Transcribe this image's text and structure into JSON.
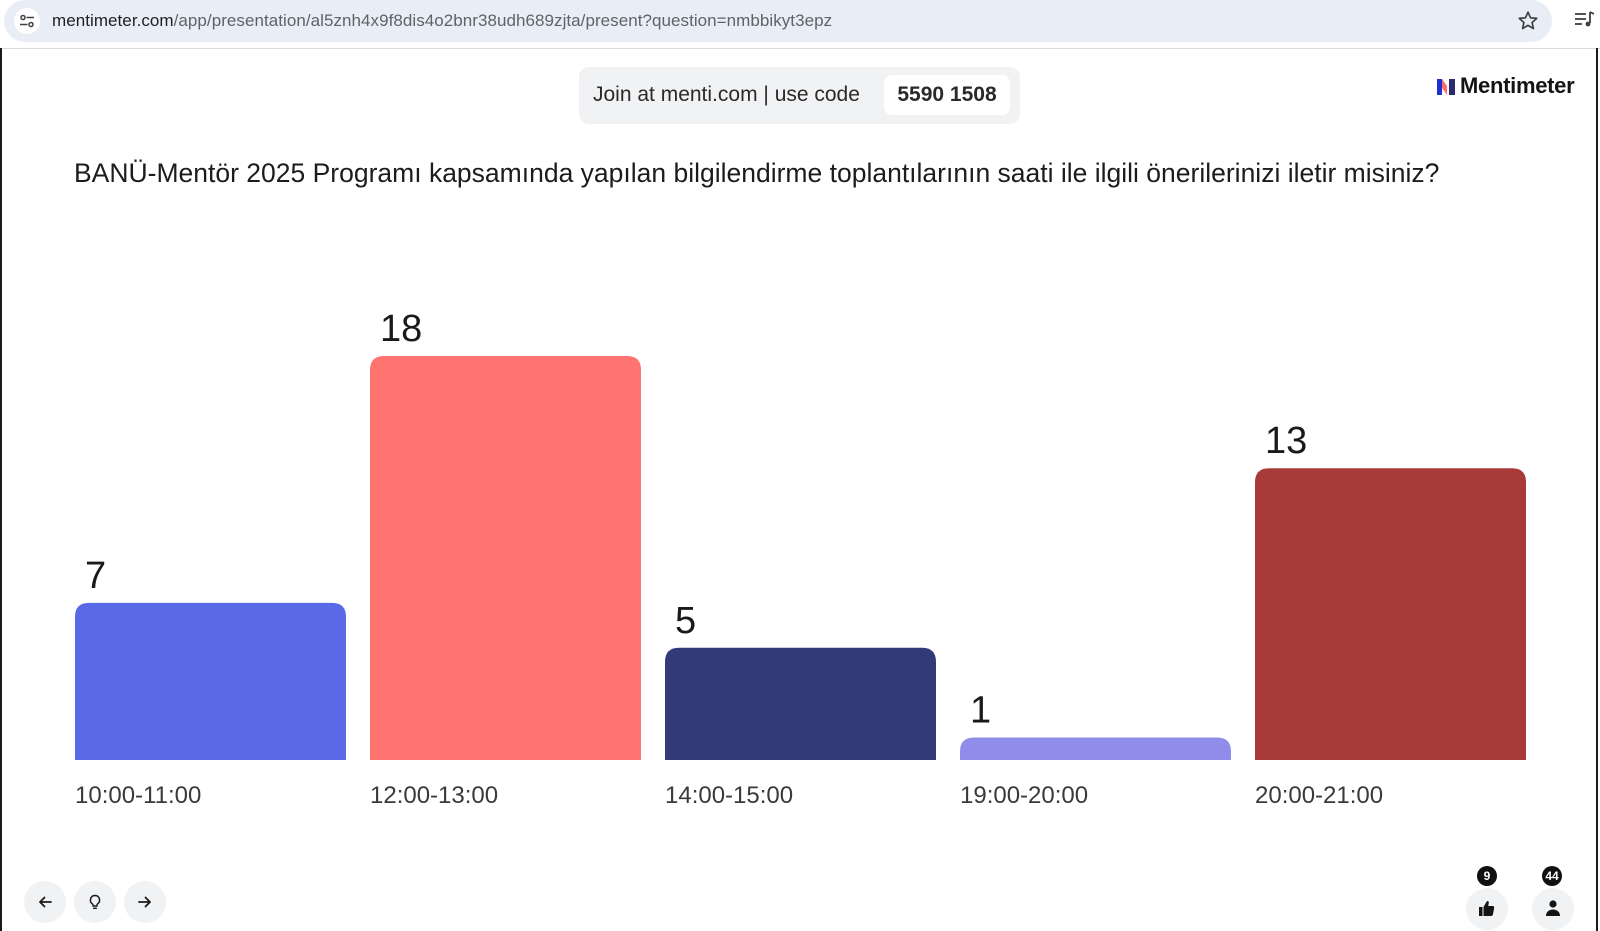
{
  "browser": {
    "url_host": "mentimeter.com",
    "url_path": "/app/presentation/al5znh4x9f8dis4o2bnr38udh689zjta/present?question=nmbbikyt3epz",
    "icons": [
      "site-info-icon",
      "bookmark-star-icon",
      "media-controls-icon"
    ]
  },
  "join": {
    "text": "Join at menti.com | use code",
    "code": "5590 1508"
  },
  "logo": {
    "text": "Mentimeter"
  },
  "question": {
    "title": "BANÜ-Mentör 2025 Programı kapsamında yapılan bilgilendirme toplantılarının saati ile ilgili önerilerinizi iletir misiniz?"
  },
  "chart_data": {
    "type": "bar",
    "categories": [
      "10:00-11:00",
      "12:00-13:00",
      "14:00-15:00",
      "19:00-20:00",
      "20:00-21:00"
    ],
    "values": [
      7,
      18,
      5,
      1,
      13
    ],
    "colors": [
      "#5a6ae6",
      "#ff7471",
      "#323b78",
      "#8f8cea",
      "#a83a3a"
    ],
    "title": "",
    "xlabel": "",
    "ylabel": "",
    "ylim": [
      0,
      18
    ],
    "grid": false,
    "legend": "none"
  },
  "controls": {
    "icons": [
      "arrow-left-icon",
      "lightbulb-icon",
      "arrow-right-icon"
    ]
  },
  "stats": {
    "reactions": "9",
    "participants": "44"
  }
}
